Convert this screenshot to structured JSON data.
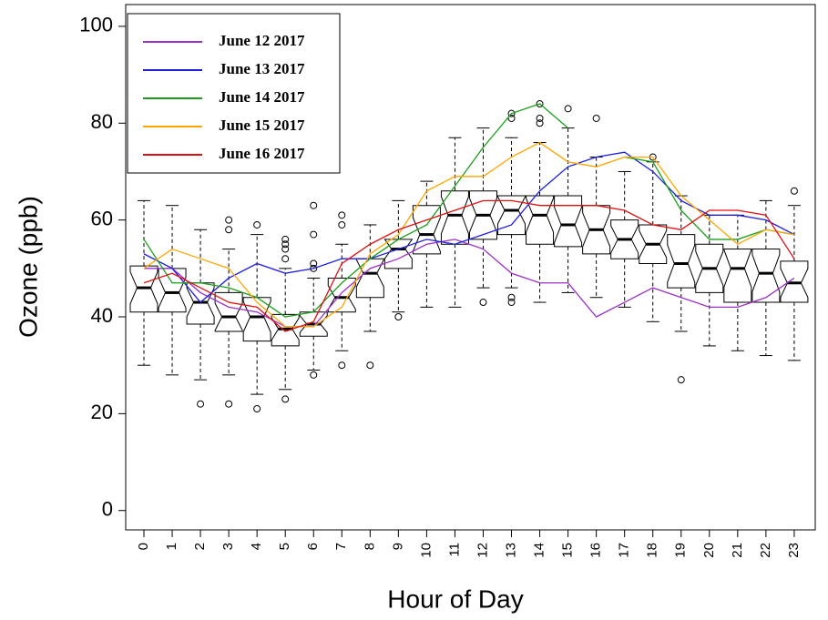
{
  "chart_data": {
    "type": "box",
    "xlabel": "Hour of Day",
    "ylabel": "Ozone (ppb)",
    "categories": [
      "0",
      "1",
      "2",
      "3",
      "4",
      "5",
      "6",
      "7",
      "8",
      "9",
      "10",
      "11",
      "12",
      "13",
      "14",
      "15",
      "16",
      "17",
      "18",
      "19",
      "20",
      "21",
      "22",
      "23"
    ],
    "boxes": [
      {
        "whislo": 30,
        "q1": 41,
        "med": 46,
        "q3": 50.5,
        "whishi": 64,
        "outliers": []
      },
      {
        "whislo": 28,
        "q1": 41,
        "med": 45,
        "q3": 50,
        "whishi": 63,
        "outliers": []
      },
      {
        "whislo": 27,
        "q1": 38.5,
        "med": 43,
        "q3": 47,
        "whishi": 58,
        "outliers": [
          22
        ]
      },
      {
        "whislo": 28,
        "q1": 37,
        "med": 40,
        "q3": 45,
        "whishi": 54,
        "outliers": [
          22,
          58,
          60
        ]
      },
      {
        "whislo": 24,
        "q1": 35,
        "med": 40,
        "q3": 44,
        "whishi": 57,
        "outliers": [
          21,
          59
        ]
      },
      {
        "whislo": 25,
        "q1": 34,
        "med": 37.5,
        "q3": 40.5,
        "whishi": 50,
        "outliers": [
          23,
          52,
          54,
          55,
          56
        ]
      },
      {
        "whislo": 29,
        "q1": 36,
        "med": 38.5,
        "q3": 41,
        "whishi": 48,
        "outliers": [
          28,
          50,
          51,
          57,
          63
        ]
      },
      {
        "whislo": 33,
        "q1": 41,
        "med": 44,
        "q3": 48,
        "whishi": 55,
        "outliers": [
          30,
          59,
          61
        ]
      },
      {
        "whislo": 37,
        "q1": 44,
        "med": 49,
        "q3": 52,
        "whishi": 59,
        "outliers": [
          30
        ]
      },
      {
        "whislo": 41,
        "q1": 50,
        "med": 54,
        "q3": 56,
        "whishi": 64,
        "outliers": [
          40
        ]
      },
      {
        "whislo": 42,
        "q1": 53,
        "med": 57,
        "q3": 63,
        "whishi": 68,
        "outliers": []
      },
      {
        "whislo": 42,
        "q1": 55,
        "med": 61,
        "q3": 66,
        "whishi": 77,
        "outliers": []
      },
      {
        "whislo": 46,
        "q1": 56,
        "med": 61,
        "q3": 66,
        "whishi": 79,
        "outliers": [
          43
        ]
      },
      {
        "whislo": 46,
        "q1": 57,
        "med": 62,
        "q3": 65,
        "whishi": 77,
        "outliers": [
          43,
          44,
          81,
          82
        ]
      },
      {
        "whislo": 43,
        "q1": 55,
        "med": 61,
        "q3": 65,
        "whishi": 76,
        "outliers": [
          80,
          81,
          84
        ]
      },
      {
        "whislo": 45,
        "q1": 54.5,
        "med": 59,
        "q3": 65,
        "whishi": 79,
        "outliers": [
          83
        ]
      },
      {
        "whislo": 44,
        "q1": 53,
        "med": 58,
        "q3": 63,
        "whishi": 73,
        "outliers": [
          81
        ]
      },
      {
        "whislo": 42,
        "q1": 52,
        "med": 56,
        "q3": 60,
        "whishi": 70,
        "outliers": []
      },
      {
        "whislo": 39,
        "q1": 51,
        "med": 55,
        "q3": 59,
        "whishi": 72,
        "outliers": [
          73
        ]
      },
      {
        "whislo": 37,
        "q1": 46,
        "med": 51,
        "q3": 57,
        "whishi": 65,
        "outliers": [
          27
        ]
      },
      {
        "whislo": 34,
        "q1": 45,
        "med": 50,
        "q3": 55,
        "whishi": 61,
        "outliers": []
      },
      {
        "whislo": 33,
        "q1": 43,
        "med": 50,
        "q3": 54,
        "whishi": 61,
        "outliers": []
      },
      {
        "whislo": 32,
        "q1": 43,
        "med": 49,
        "q3": 54,
        "whishi": 64,
        "outliers": []
      },
      {
        "whislo": 31,
        "q1": 43,
        "med": 47,
        "q3": 51.5,
        "whishi": 63,
        "outliers": [
          66
        ]
      }
    ],
    "series": [
      {
        "name": "June 12 2017",
        "color": "#9b30c8",
        "values": [
          50,
          50,
          45,
          42,
          41,
          38,
          38,
          45,
          50,
          52,
          55,
          56,
          54,
          49,
          47,
          47,
          40,
          43,
          46,
          44,
          42,
          42,
          44,
          48
        ]
      },
      {
        "name": "June 13 2017",
        "color": "#1f1fe0",
        "values": [
          53,
          50,
          43,
          48,
          51,
          49,
          50,
          52,
          52,
          54,
          56,
          55,
          57,
          59,
          66,
          71,
          73,
          74,
          70,
          64,
          61,
          61,
          60,
          57
        ]
      },
      {
        "name": "June 14 2017",
        "color": "#1a9e1a",
        "values": [
          56,
          47,
          47,
          46,
          44,
          40,
          41,
          47,
          52,
          56,
          59,
          67,
          75,
          82,
          84,
          79,
          null,
          73,
          72,
          62,
          56,
          56,
          58,
          57
        ]
      },
      {
        "name": "June 15 2017",
        "color": "#ffa500",
        "values": [
          50,
          54,
          52,
          50,
          43,
          38,
          38,
          42,
          53,
          57,
          66,
          69,
          69,
          73,
          76,
          72,
          71,
          73,
          73,
          65,
          60,
          55,
          58,
          57
        ]
      },
      {
        "name": "June 16 2017",
        "color": "#e01010",
        "values": [
          47,
          49,
          46,
          43,
          42,
          37,
          39,
          51,
          55,
          58,
          60,
          62,
          64,
          64,
          63,
          63,
          63,
          62,
          59,
          58,
          62,
          62,
          61,
          52
        ]
      }
    ],
    "ylim": [
      -4,
      104.5
    ],
    "yticks": [
      0,
      20,
      40,
      60,
      80,
      100
    ],
    "legend": "upper left"
  }
}
